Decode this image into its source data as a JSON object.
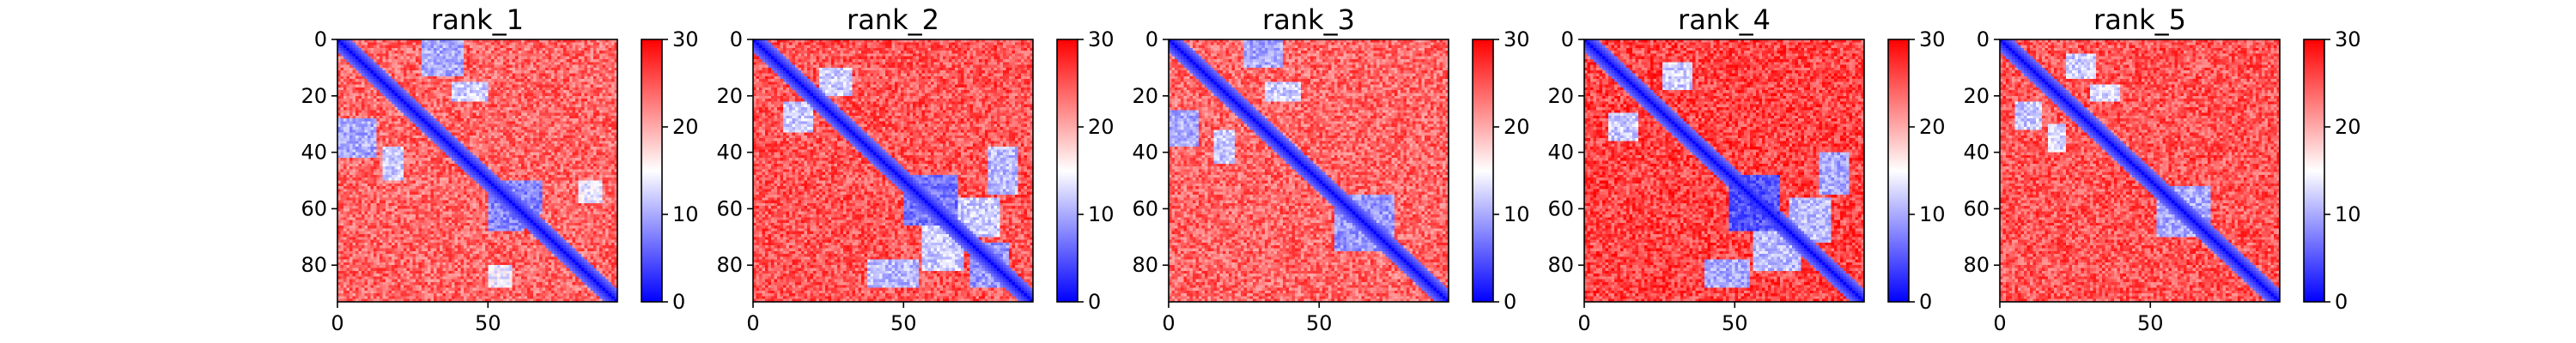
{
  "figure": {
    "background": "#ffffff"
  },
  "chart_data": [
    {
      "type": "heatmap",
      "title": "rank_1",
      "matrix_size": 93,
      "xlim": [
        0,
        93
      ],
      "ylim": [
        93,
        0
      ],
      "xticks": [
        0,
        50
      ],
      "yticks": [
        0,
        20,
        40,
        60,
        80
      ],
      "colorbar": {
        "min": 0,
        "max": 30,
        "ticks": [
          0,
          10,
          20,
          30
        ],
        "colormap": "bwr"
      },
      "contact_regions": [
        {
          "x": [
            28,
            42
          ],
          "y": [
            0,
            13
          ],
          "value": 10
        },
        {
          "x": [
            0,
            13
          ],
          "y": [
            28,
            42
          ],
          "value": 10
        },
        {
          "x": [
            15,
            22
          ],
          "y": [
            38,
            50
          ],
          "value": 12
        },
        {
          "x": [
            38,
            50
          ],
          "y": [
            15,
            22
          ],
          "value": 12
        },
        {
          "x": [
            50,
            62
          ],
          "y": [
            55,
            68
          ],
          "value": 8
        },
        {
          "x": [
            55,
            68
          ],
          "y": [
            50,
            62
          ],
          "value": 8
        },
        {
          "x": [
            50,
            58
          ],
          "y": [
            80,
            88
          ],
          "value": 14
        },
        {
          "x": [
            80,
            88
          ],
          "y": [
            50,
            58
          ],
          "value": 14
        }
      ],
      "background_level": 24
    },
    {
      "type": "heatmap",
      "title": "rank_2",
      "matrix_size": 93,
      "xlim": [
        0,
        93
      ],
      "ylim": [
        93,
        0
      ],
      "xticks": [
        0,
        50
      ],
      "yticks": [
        0,
        20,
        40,
        60,
        80
      ],
      "colorbar": {
        "min": 0,
        "max": 30,
        "ticks": [
          0,
          10,
          20,
          30
        ],
        "colormap": "bwr"
      },
      "contact_regions": [
        {
          "x": [
            22,
            33
          ],
          "y": [
            10,
            20
          ],
          "value": 12
        },
        {
          "x": [
            10,
            20
          ],
          "y": [
            22,
            33
          ],
          "value": 12
        },
        {
          "x": [
            50,
            68
          ],
          "y": [
            48,
            66
          ],
          "value": 7
        },
        {
          "x": [
            66,
            82
          ],
          "y": [
            56,
            70
          ],
          "value": 12
        },
        {
          "x": [
            56,
            70
          ],
          "y": [
            66,
            82
          ],
          "value": 12
        },
        {
          "x": [
            38,
            55
          ],
          "y": [
            78,
            88
          ],
          "value": 11
        },
        {
          "x": [
            78,
            88
          ],
          "y": [
            38,
            55
          ],
          "value": 11
        },
        {
          "x": [
            72,
            85
          ],
          "y": [
            72,
            88
          ],
          "value": 9
        }
      ],
      "background_level": 25
    },
    {
      "type": "heatmap",
      "title": "rank_3",
      "matrix_size": 93,
      "xlim": [
        0,
        93
      ],
      "ylim": [
        93,
        0
      ],
      "xticks": [
        0,
        50
      ],
      "yticks": [
        0,
        20,
        40,
        60,
        80
      ],
      "colorbar": {
        "min": 0,
        "max": 30,
        "ticks": [
          0,
          10,
          20,
          30
        ],
        "colormap": "bwr"
      },
      "contact_regions": [
        {
          "x": [
            25,
            38
          ],
          "y": [
            0,
            10
          ],
          "value": 10
        },
        {
          "x": [
            0,
            10
          ],
          "y": [
            25,
            38
          ],
          "value": 10
        },
        {
          "x": [
            15,
            22
          ],
          "y": [
            32,
            44
          ],
          "value": 12
        },
        {
          "x": [
            32,
            44
          ],
          "y": [
            15,
            22
          ],
          "value": 12
        },
        {
          "x": [
            55,
            70
          ],
          "y": [
            60,
            75
          ],
          "value": 9
        },
        {
          "x": [
            60,
            75
          ],
          "y": [
            55,
            70
          ],
          "value": 9
        }
      ],
      "background_level": 24
    },
    {
      "type": "heatmap",
      "title": "rank_4",
      "matrix_size": 93,
      "xlim": [
        0,
        93
      ],
      "ylim": [
        93,
        0
      ],
      "xticks": [
        0,
        50
      ],
      "yticks": [
        0,
        20,
        40,
        60,
        80
      ],
      "colorbar": {
        "min": 0,
        "max": 30,
        "ticks": [
          0,
          10,
          20,
          30
        ],
        "colormap": "bwr"
      },
      "contact_regions": [
        {
          "x": [
            26,
            36
          ],
          "y": [
            8,
            18
          ],
          "value": 12
        },
        {
          "x": [
            8,
            18
          ],
          "y": [
            26,
            36
          ],
          "value": 12
        },
        {
          "x": [
            48,
            65
          ],
          "y": [
            48,
            68
          ],
          "value": 5
        },
        {
          "x": [
            68,
            82
          ],
          "y": [
            56,
            72
          ],
          "value": 11
        },
        {
          "x": [
            56,
            72
          ],
          "y": [
            68,
            82
          ],
          "value": 11
        },
        {
          "x": [
            40,
            55
          ],
          "y": [
            78,
            88
          ],
          "value": 10
        },
        {
          "x": [
            78,
            88
          ],
          "y": [
            40,
            55
          ],
          "value": 10
        }
      ],
      "background_level": 26
    },
    {
      "type": "heatmap",
      "title": "rank_5",
      "matrix_size": 93,
      "xlim": [
        0,
        93
      ],
      "ylim": [
        93,
        0
      ],
      "xticks": [
        0,
        50
      ],
      "yticks": [
        0,
        20,
        40,
        60,
        80
      ],
      "colorbar": {
        "min": 0,
        "max": 30,
        "ticks": [
          0,
          10,
          20,
          30
        ],
        "colormap": "bwr"
      },
      "contact_regions": [
        {
          "x": [
            22,
            32
          ],
          "y": [
            5,
            14
          ],
          "value": 12
        },
        {
          "x": [
            5,
            14
          ],
          "y": [
            22,
            32
          ],
          "value": 12
        },
        {
          "x": [
            16,
            22
          ],
          "y": [
            30,
            40
          ],
          "value": 13
        },
        {
          "x": [
            30,
            40
          ],
          "y": [
            16,
            22
          ],
          "value": 13
        },
        {
          "x": [
            52,
            66
          ],
          "y": [
            56,
            70
          ],
          "value": 10
        },
        {
          "x": [
            56,
            70
          ],
          "y": [
            52,
            66
          ],
          "value": 10
        }
      ],
      "background_level": 25
    }
  ]
}
